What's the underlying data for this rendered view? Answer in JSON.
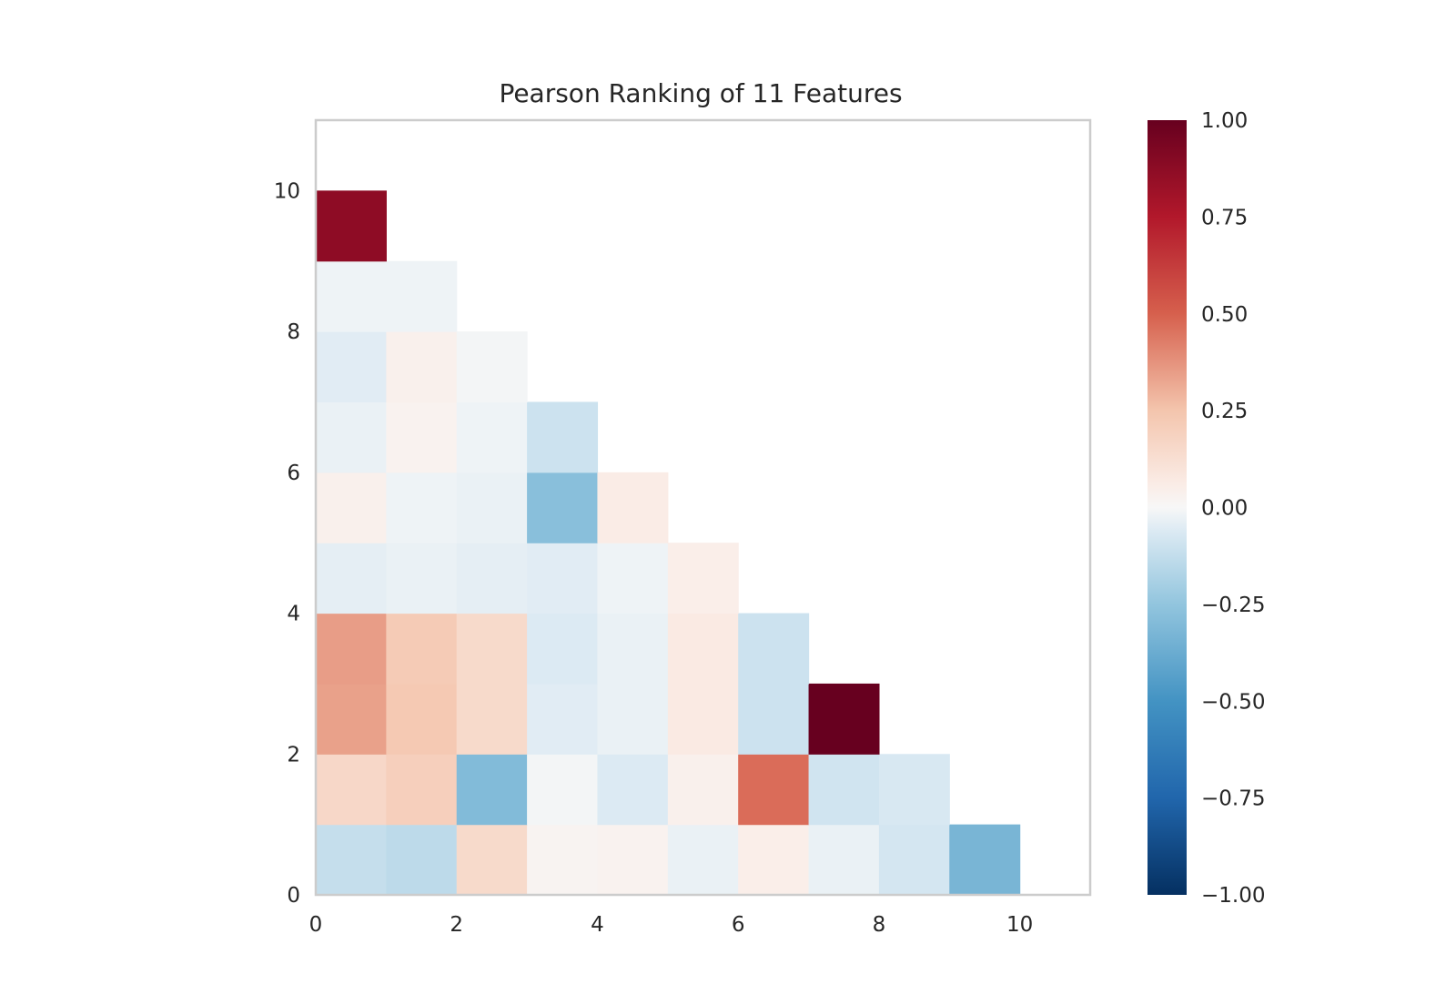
{
  "chart_data": {
    "type": "heatmap",
    "title": "Pearson Ranking of 11 Features",
    "xlabel": "",
    "ylabel": "",
    "xlim": [
      0,
      11
    ],
    "ylim": [
      0,
      11
    ],
    "x_ticks": [
      0,
      2,
      4,
      6,
      8,
      10
    ],
    "y_ticks": [
      0,
      2,
      4,
      6,
      8,
      10
    ],
    "x_tick_labels": [
      "0",
      "2",
      "4",
      "6",
      "8",
      "10"
    ],
    "y_tick_labels": [
      "0",
      "2",
      "4",
      "6",
      "8",
      "10"
    ],
    "grid": false,
    "colormap": "RdBu_r",
    "vmin": -1.0,
    "vmax": 1.0,
    "colorbar_ticks": [
      1.0,
      0.75,
      0.5,
      0.25,
      0.0,
      -0.25,
      -0.5,
      -0.75,
      -1.0
    ],
    "colorbar_tick_labels": [
      "1.00",
      "0.75",
      "0.50",
      "0.25",
      "0.00",
      "−0.25",
      "−0.50",
      "−0.75",
      "−1.00"
    ],
    "cells": [
      {
        "row": 0,
        "col": 0,
        "value": -0.12
      },
      {
        "row": 0,
        "col": 1,
        "value": -0.14
      },
      {
        "row": 0,
        "col": 2,
        "value": 0.15
      },
      {
        "row": 0,
        "col": 3,
        "value": 0.02
      },
      {
        "row": 0,
        "col": 4,
        "value": 0.03
      },
      {
        "row": 0,
        "col": 5,
        "value": -0.03
      },
      {
        "row": 0,
        "col": 6,
        "value": 0.05
      },
      {
        "row": 0,
        "col": 7,
        "value": -0.03
      },
      {
        "row": 0,
        "col": 8,
        "value": -0.08
      },
      {
        "row": 0,
        "col": 9,
        "value": -0.33
      },
      {
        "row": 1,
        "col": 0,
        "value": 0.16
      },
      {
        "row": 1,
        "col": 1,
        "value": 0.2
      },
      {
        "row": 1,
        "col": 2,
        "value": -0.3
      },
      {
        "row": 1,
        "col": 3,
        "value": -0.01
      },
      {
        "row": 1,
        "col": 4,
        "value": -0.06
      },
      {
        "row": 1,
        "col": 5,
        "value": 0.04
      },
      {
        "row": 1,
        "col": 6,
        "value": 0.47
      },
      {
        "row": 1,
        "col": 7,
        "value": -0.09
      },
      {
        "row": 1,
        "col": 8,
        "value": -0.07
      },
      {
        "row": 2,
        "col": 0,
        "value": 0.34
      },
      {
        "row": 2,
        "col": 1,
        "value": 0.23
      },
      {
        "row": 2,
        "col": 2,
        "value": 0.15
      },
      {
        "row": 2,
        "col": 3,
        "value": -0.05
      },
      {
        "row": 2,
        "col": 4,
        "value": -0.03
      },
      {
        "row": 2,
        "col": 5,
        "value": 0.07
      },
      {
        "row": 2,
        "col": 6,
        "value": -0.1
      },
      {
        "row": 2,
        "col": 7,
        "value": 1.0
      },
      {
        "row": 3,
        "col": 0,
        "value": 0.35
      },
      {
        "row": 3,
        "col": 1,
        "value": 0.22
      },
      {
        "row": 3,
        "col": 2,
        "value": 0.15
      },
      {
        "row": 3,
        "col": 3,
        "value": -0.06
      },
      {
        "row": 3,
        "col": 4,
        "value": -0.03
      },
      {
        "row": 3,
        "col": 5,
        "value": 0.07
      },
      {
        "row": 3,
        "col": 6,
        "value": -0.1
      },
      {
        "row": 4,
        "col": 0,
        "value": -0.04
      },
      {
        "row": 4,
        "col": 1,
        "value": -0.03
      },
      {
        "row": 4,
        "col": 2,
        "value": -0.04
      },
      {
        "row": 4,
        "col": 3,
        "value": -0.05
      },
      {
        "row": 4,
        "col": 4,
        "value": -0.02
      },
      {
        "row": 4,
        "col": 5,
        "value": 0.05
      },
      {
        "row": 5,
        "col": 0,
        "value": 0.04
      },
      {
        "row": 5,
        "col": 1,
        "value": -0.02
      },
      {
        "row": 5,
        "col": 2,
        "value": -0.03
      },
      {
        "row": 5,
        "col": 3,
        "value": -0.28
      },
      {
        "row": 5,
        "col": 4,
        "value": 0.06
      },
      {
        "row": 6,
        "col": 0,
        "value": -0.03
      },
      {
        "row": 6,
        "col": 1,
        "value": 0.03
      },
      {
        "row": 6,
        "col": 2,
        "value": -0.02
      },
      {
        "row": 6,
        "col": 3,
        "value": -0.1
      },
      {
        "row": 7,
        "col": 0,
        "value": -0.05
      },
      {
        "row": 7,
        "col": 1,
        "value": 0.04
      },
      {
        "row": 7,
        "col": 2,
        "value": -0.01
      },
      {
        "row": 8,
        "col": 0,
        "value": -0.02
      },
      {
        "row": 8,
        "col": 1,
        "value": -0.02
      },
      {
        "row": 9,
        "col": 0,
        "value": 0.87
      }
    ]
  }
}
